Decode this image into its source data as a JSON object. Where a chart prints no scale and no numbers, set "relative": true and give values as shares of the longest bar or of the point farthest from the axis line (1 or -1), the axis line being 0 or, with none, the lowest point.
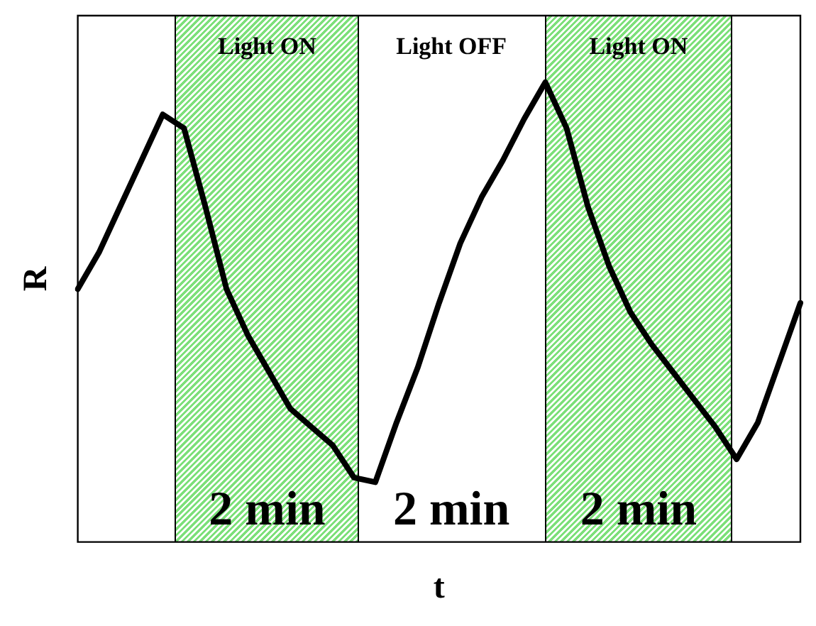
{
  "chart_data": {
    "type": "line",
    "relative": true,
    "xlabel": "t",
    "ylabel": "R",
    "color": "#000000",
    "marker": "none",
    "line_style": "solid",
    "categories": [
      null,
      null,
      null,
      null,
      null,
      null,
      null,
      null,
      null,
      null,
      null,
      null,
      null,
      null,
      null,
      null,
      null,
      null,
      null,
      null,
      null,
      null,
      null,
      null,
      null,
      null,
      null,
      null,
      null,
      null,
      null,
      null,
      null,
      null,
      null
    ],
    "values": [
      0.55,
      0.63,
      0.73,
      0.83,
      0.93,
      0.9,
      0.73,
      0.55,
      0.45,
      0.37,
      0.29,
      0.25,
      0.21,
      0.14,
      0.13,
      0.26,
      0.38,
      0.52,
      0.65,
      0.75,
      0.83,
      0.92,
      1,
      0.9,
      0.73,
      0.6,
      0.5,
      0.43,
      0.37,
      0.31,
      0.25,
      0.18,
      0.26,
      0.39,
      0.52
    ],
    "annotations": [
      "Light ON",
      "Light OFF",
      "Light ON",
      "2 min",
      "2 min",
      "2 min"
    ]
  }
}
